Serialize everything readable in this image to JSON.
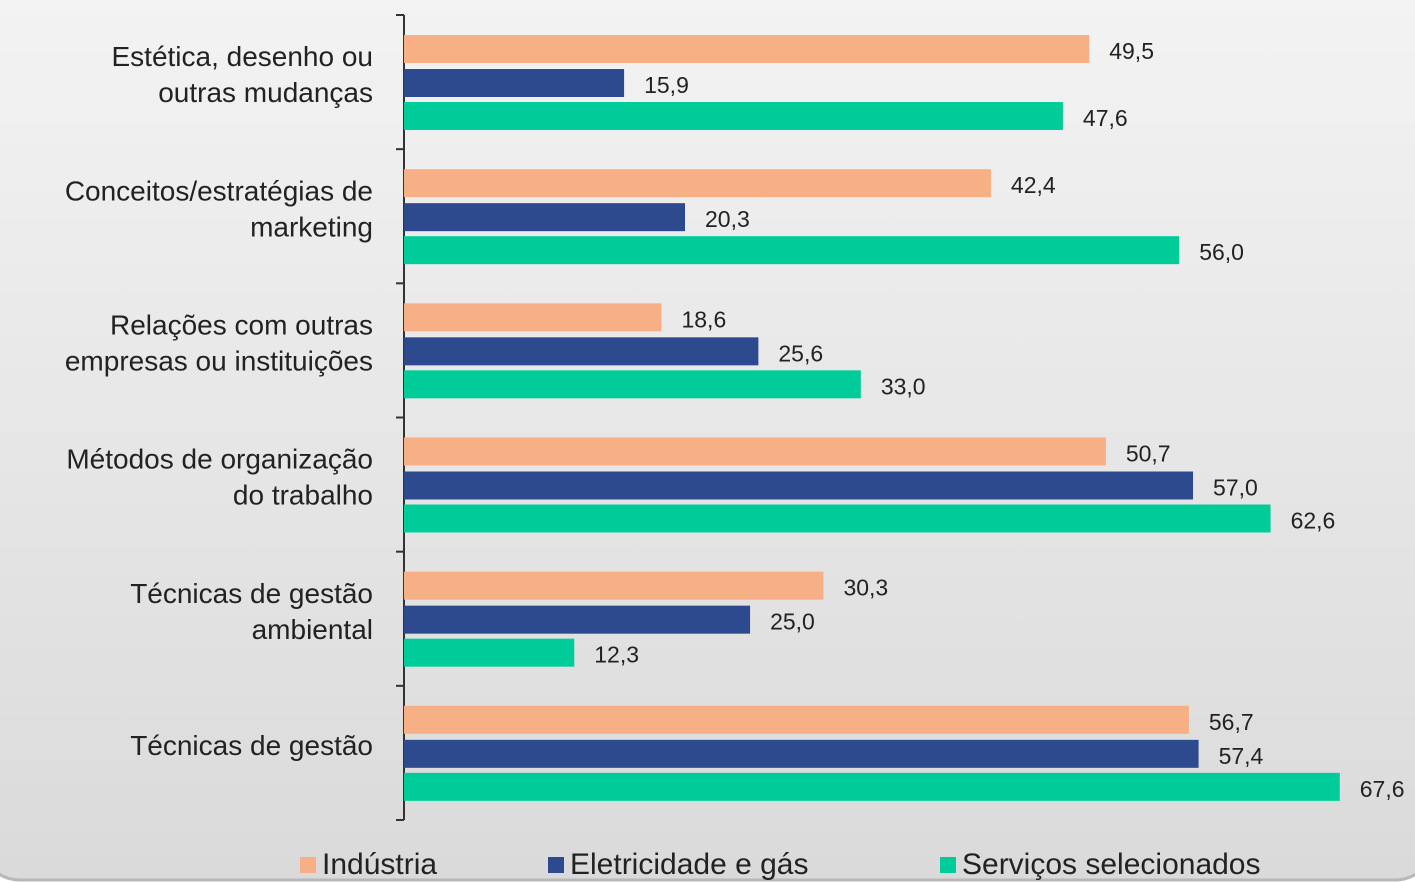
{
  "chart_data": {
    "type": "bar",
    "orientation": "horizontal",
    "categories": [
      "Estética, desenho ou\noutras mudanças",
      "Conceitos/estratégias de\nmarketing",
      "Relações com outras\nempresas ou instituições",
      "Métodos de organização\ndo trabalho",
      "Técnicas de gestão\nambiental",
      "Técnicas de gestão"
    ],
    "series": [
      {
        "name": "Indústria",
        "color": "#f7b086",
        "values": [
          49.5,
          42.4,
          18.6,
          50.7,
          30.3,
          56.7
        ],
        "value_labels": [
          "49,5",
          "42,4",
          "18,6",
          "50,7",
          "30,3",
          "56,7"
        ]
      },
      {
        "name": "Eletricidade e gás",
        "color": "#2e4a8e",
        "values": [
          15.9,
          20.3,
          25.6,
          57.0,
          25.0,
          57.4
        ],
        "value_labels": [
          "15,9",
          "20,3",
          "25,6",
          "57,0",
          "25,0",
          "57,4"
        ]
      },
      {
        "name": "Serviços selecionados",
        "color": "#00cc99",
        "values": [
          47.6,
          56.0,
          33.0,
          62.6,
          12.3,
          67.6
        ],
        "value_labels": [
          "47,6",
          "56,0",
          "33,0",
          "62,6",
          "12,3",
          "67,6"
        ]
      }
    ],
    "xlim": [
      0,
      70
    ],
    "legend": "bottom"
  }
}
